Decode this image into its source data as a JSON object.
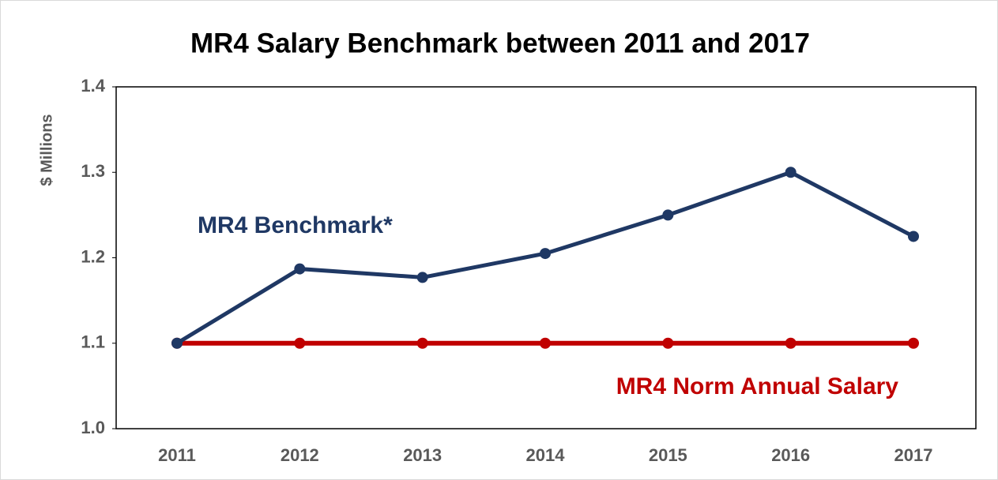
{
  "chart_data": {
    "type": "line",
    "title": "MR4 Salary Benchmark between 2011 and 2017",
    "ylabel": "$ Millions",
    "categories": [
      "2011",
      "2012",
      "2013",
      "2014",
      "2015",
      "2016",
      "2017"
    ],
    "series": [
      {
        "name": "MR4 Benchmark*",
        "color": "#1f3864",
        "values": [
          1.1,
          1.187,
          1.177,
          1.205,
          1.25,
          1.3,
          1.225
        ]
      },
      {
        "name": "MR4 Norm Annual Salary",
        "color": "#c00000",
        "values": [
          1.1,
          1.1,
          1.1,
          1.1,
          1.1,
          1.1,
          1.1
        ]
      }
    ],
    "ylim": [
      1.0,
      1.4
    ],
    "yticks": [
      {
        "value": 1.0,
        "label": "1.0"
      },
      1.1,
      1.2,
      1.3,
      1.4
    ],
    "grid": false
  }
}
